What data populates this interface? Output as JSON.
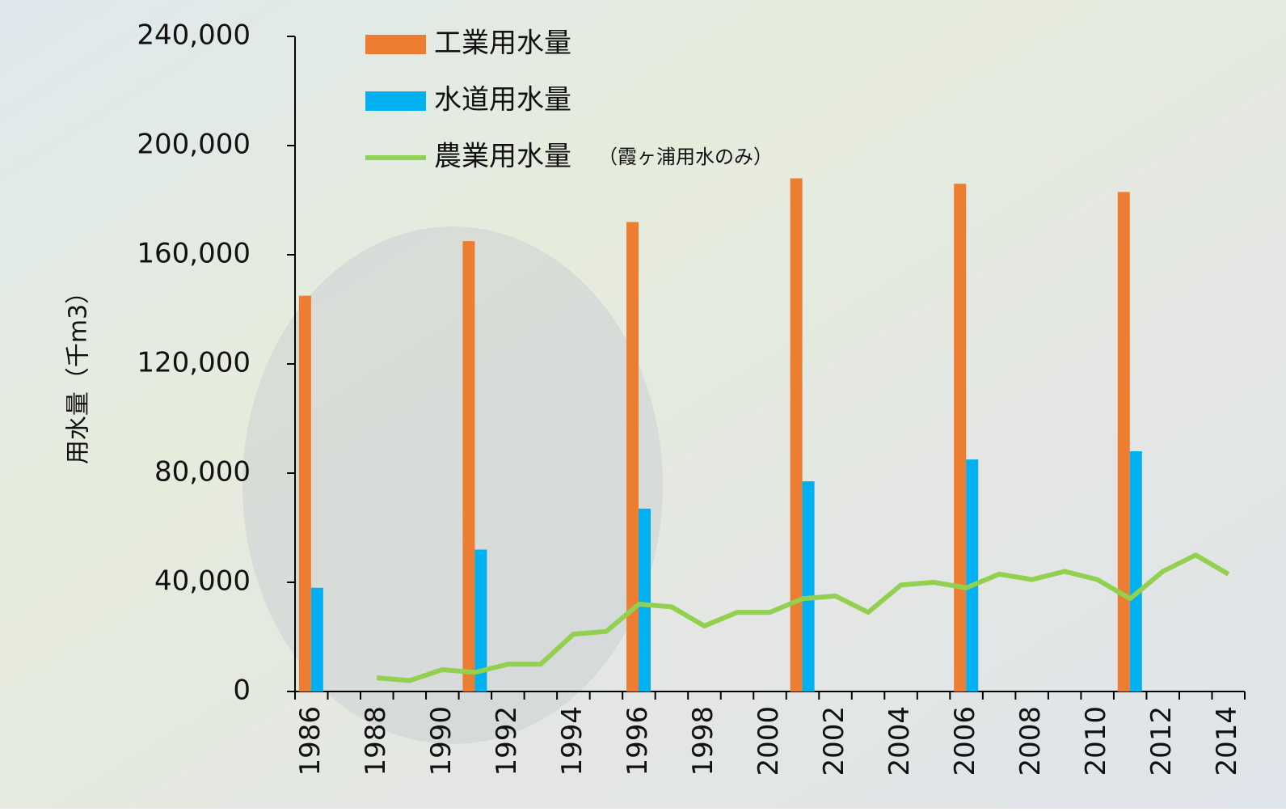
{
  "chart_data": {
    "type": "bar_line",
    "y_label": "用水量（千m3）",
    "categories": [
      "1986",
      null,
      "1988",
      null,
      "1990",
      null,
      "1992",
      null,
      "1994",
      null,
      "1996",
      null,
      "1998",
      null,
      "2000",
      null,
      "2002",
      null,
      "2004",
      null,
      "2006",
      null,
      "2008",
      null,
      "2010",
      null,
      "2012",
      null,
      "2014"
    ],
    "series": [
      {
        "name": "工業用水量",
        "type": "bar",
        "color": "#ed7d31",
        "values": [
          145000,
          null,
          null,
          null,
          null,
          165000,
          null,
          null,
          null,
          null,
          172000,
          null,
          null,
          null,
          null,
          188000,
          null,
          null,
          null,
          null,
          186000,
          null,
          null,
          null,
          null,
          183000,
          null,
          null,
          null
        ]
      },
      {
        "name": "水道用水量",
        "type": "bar",
        "color": "#00b0f0",
        "values": [
          38000,
          null,
          null,
          null,
          null,
          52000,
          null,
          null,
          null,
          null,
          67000,
          null,
          null,
          null,
          null,
          77000,
          null,
          null,
          null,
          null,
          85000,
          null,
          null,
          null,
          null,
          88000,
          null,
          null,
          null
        ]
      },
      {
        "name": "農業用水量",
        "name_note": "（霞ヶ浦用水のみ）",
        "type": "line",
        "color": "#92d050",
        "values": [
          null,
          null,
          5000,
          4000,
          8000,
          7000,
          10000,
          10000,
          21000,
          22000,
          32000,
          31000,
          24000,
          29000,
          29000,
          34000,
          35000,
          29000,
          39000,
          40000,
          38000,
          43000,
          41000,
          44000,
          41000,
          34000,
          44000,
          50000,
          43000
        ]
      }
    ],
    "ylim": [
      0,
      240000
    ],
    "yticks": [
      {
        "value": 0,
        "label": "0"
      },
      {
        "value": 40000,
        "label": "40,000"
      },
      {
        "value": 80000,
        "label": "80,000"
      },
      {
        "value": 120000,
        "label": "120,000"
      },
      {
        "value": 160000,
        "label": "160,000"
      },
      {
        "value": 200000,
        "label": "200,000"
      },
      {
        "value": 240000,
        "label": "240,000"
      }
    ]
  }
}
